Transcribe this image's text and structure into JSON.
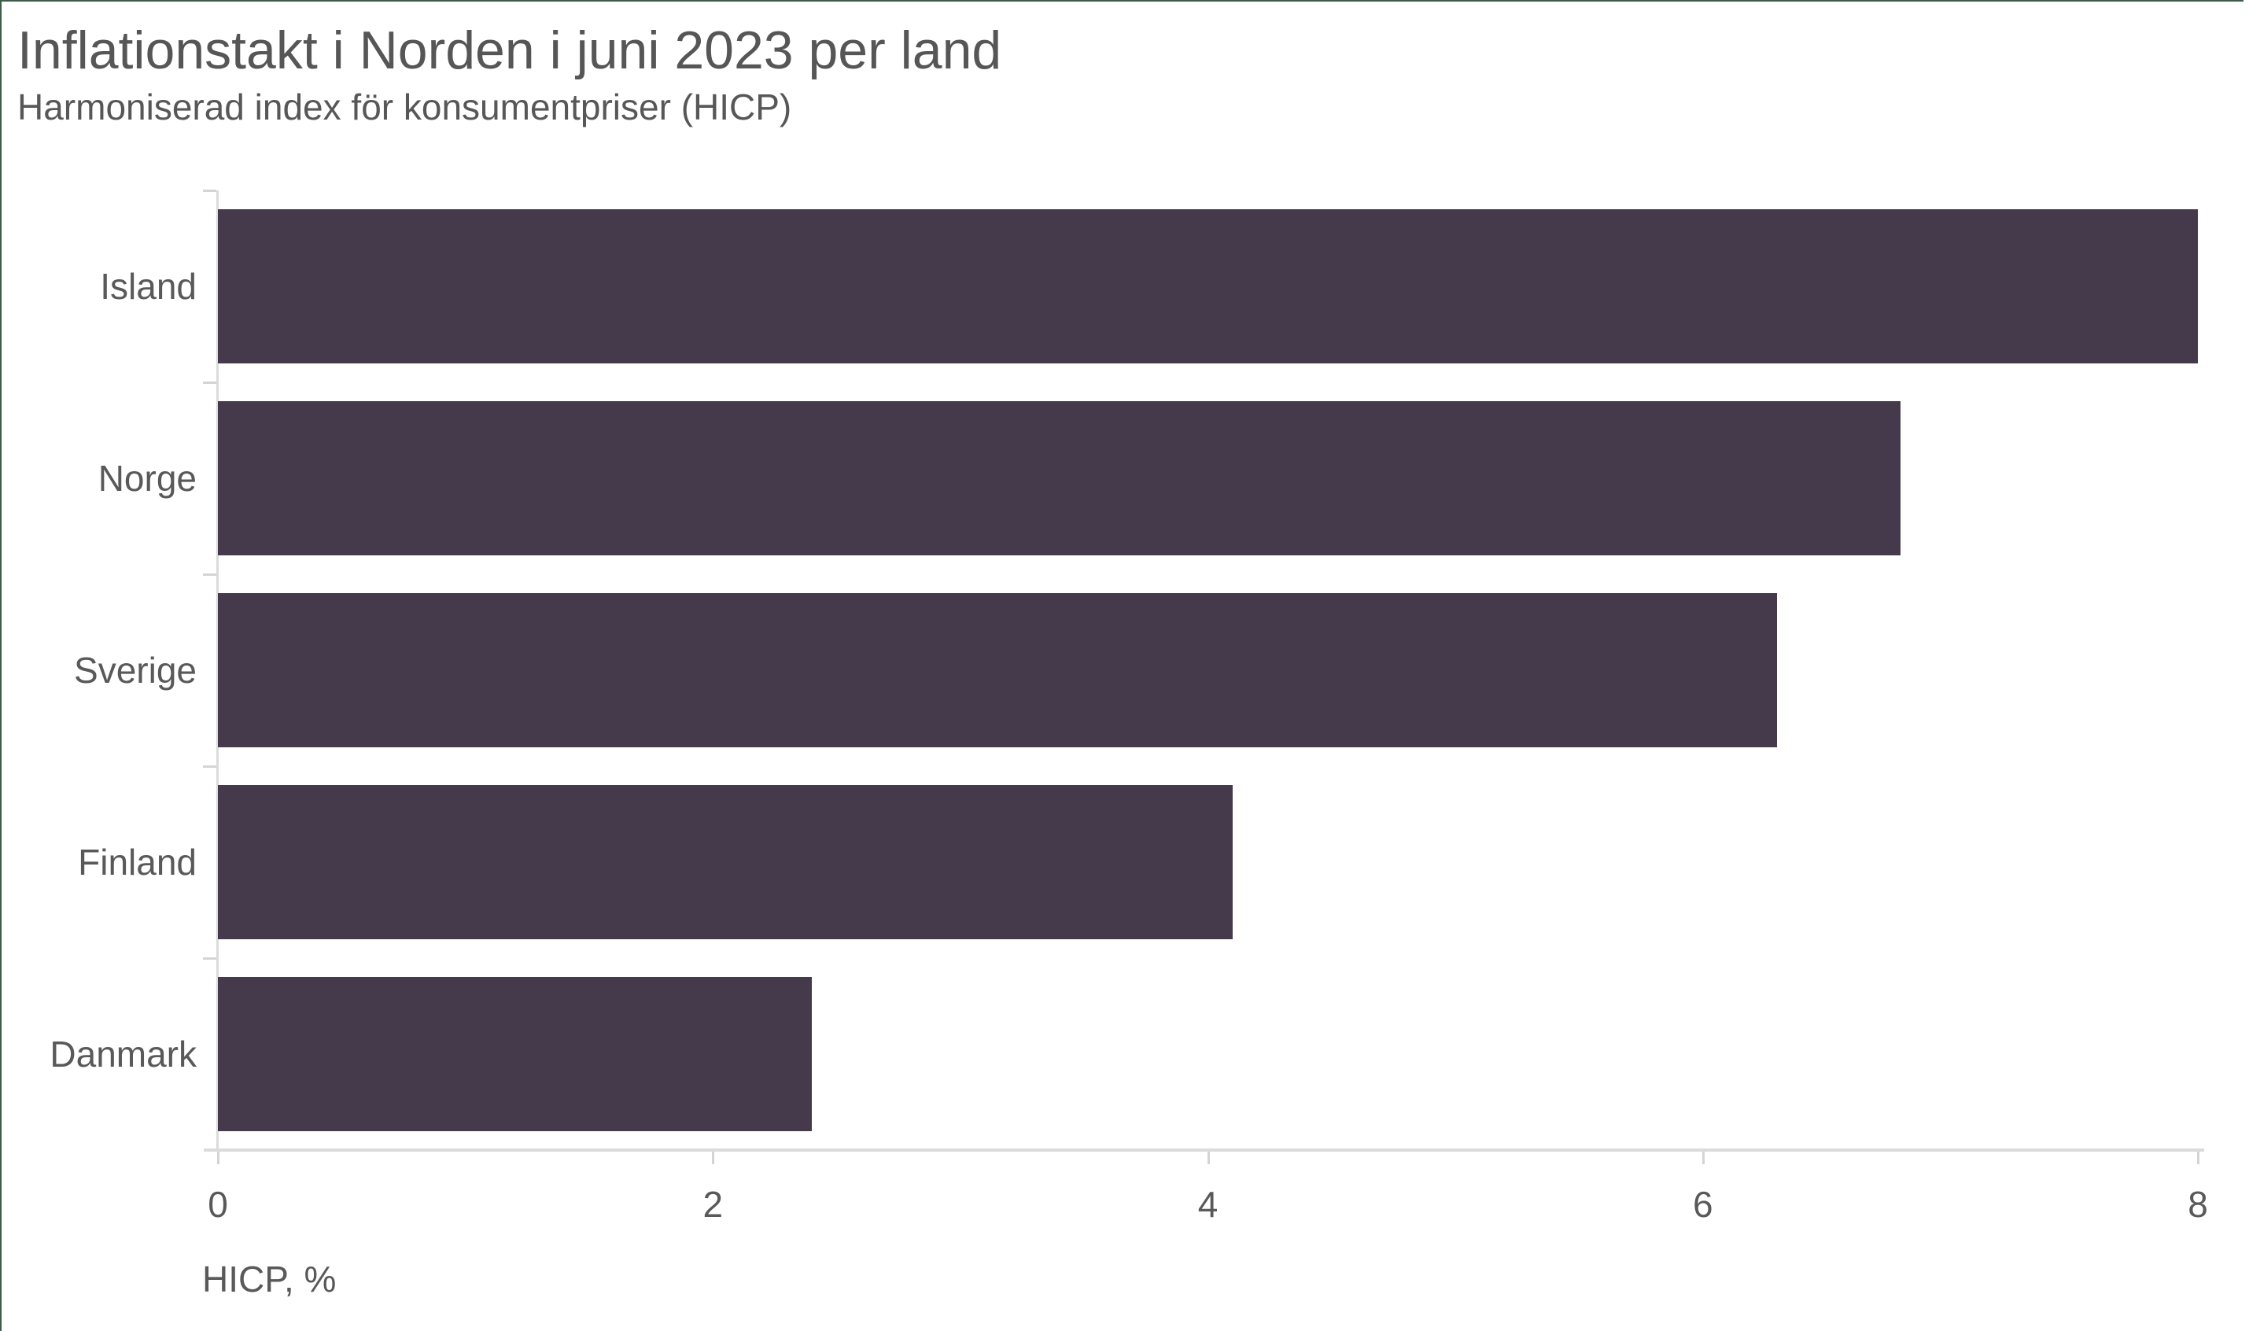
{
  "chart_data": {
    "type": "bar",
    "orientation": "horizontal",
    "title": "Inflationstakt i Norden i juni 2023 per land",
    "subtitle": "Harmoniserad index för konsumentpriser (HICP)",
    "xlabel": "HICP, %",
    "categories": [
      "Island",
      "Norge",
      "Sverige",
      "Finland",
      "Danmark"
    ],
    "values": [
      8.0,
      6.8,
      6.3,
      4.1,
      2.4
    ],
    "x_ticks": [
      0,
      2,
      4,
      6,
      8
    ],
    "xlim": [
      0,
      8
    ],
    "grid": false,
    "legend": "none",
    "colors": {
      "bar": "#45394C",
      "axis_line": "#DBDBDB",
      "tick_mark": "#D4D4D4",
      "title_text": "#565656",
      "subtitle_text": "#575757",
      "label_text": "#595959",
      "page_edge": "#3F5B49",
      "background": "#FFFFFF"
    }
  }
}
